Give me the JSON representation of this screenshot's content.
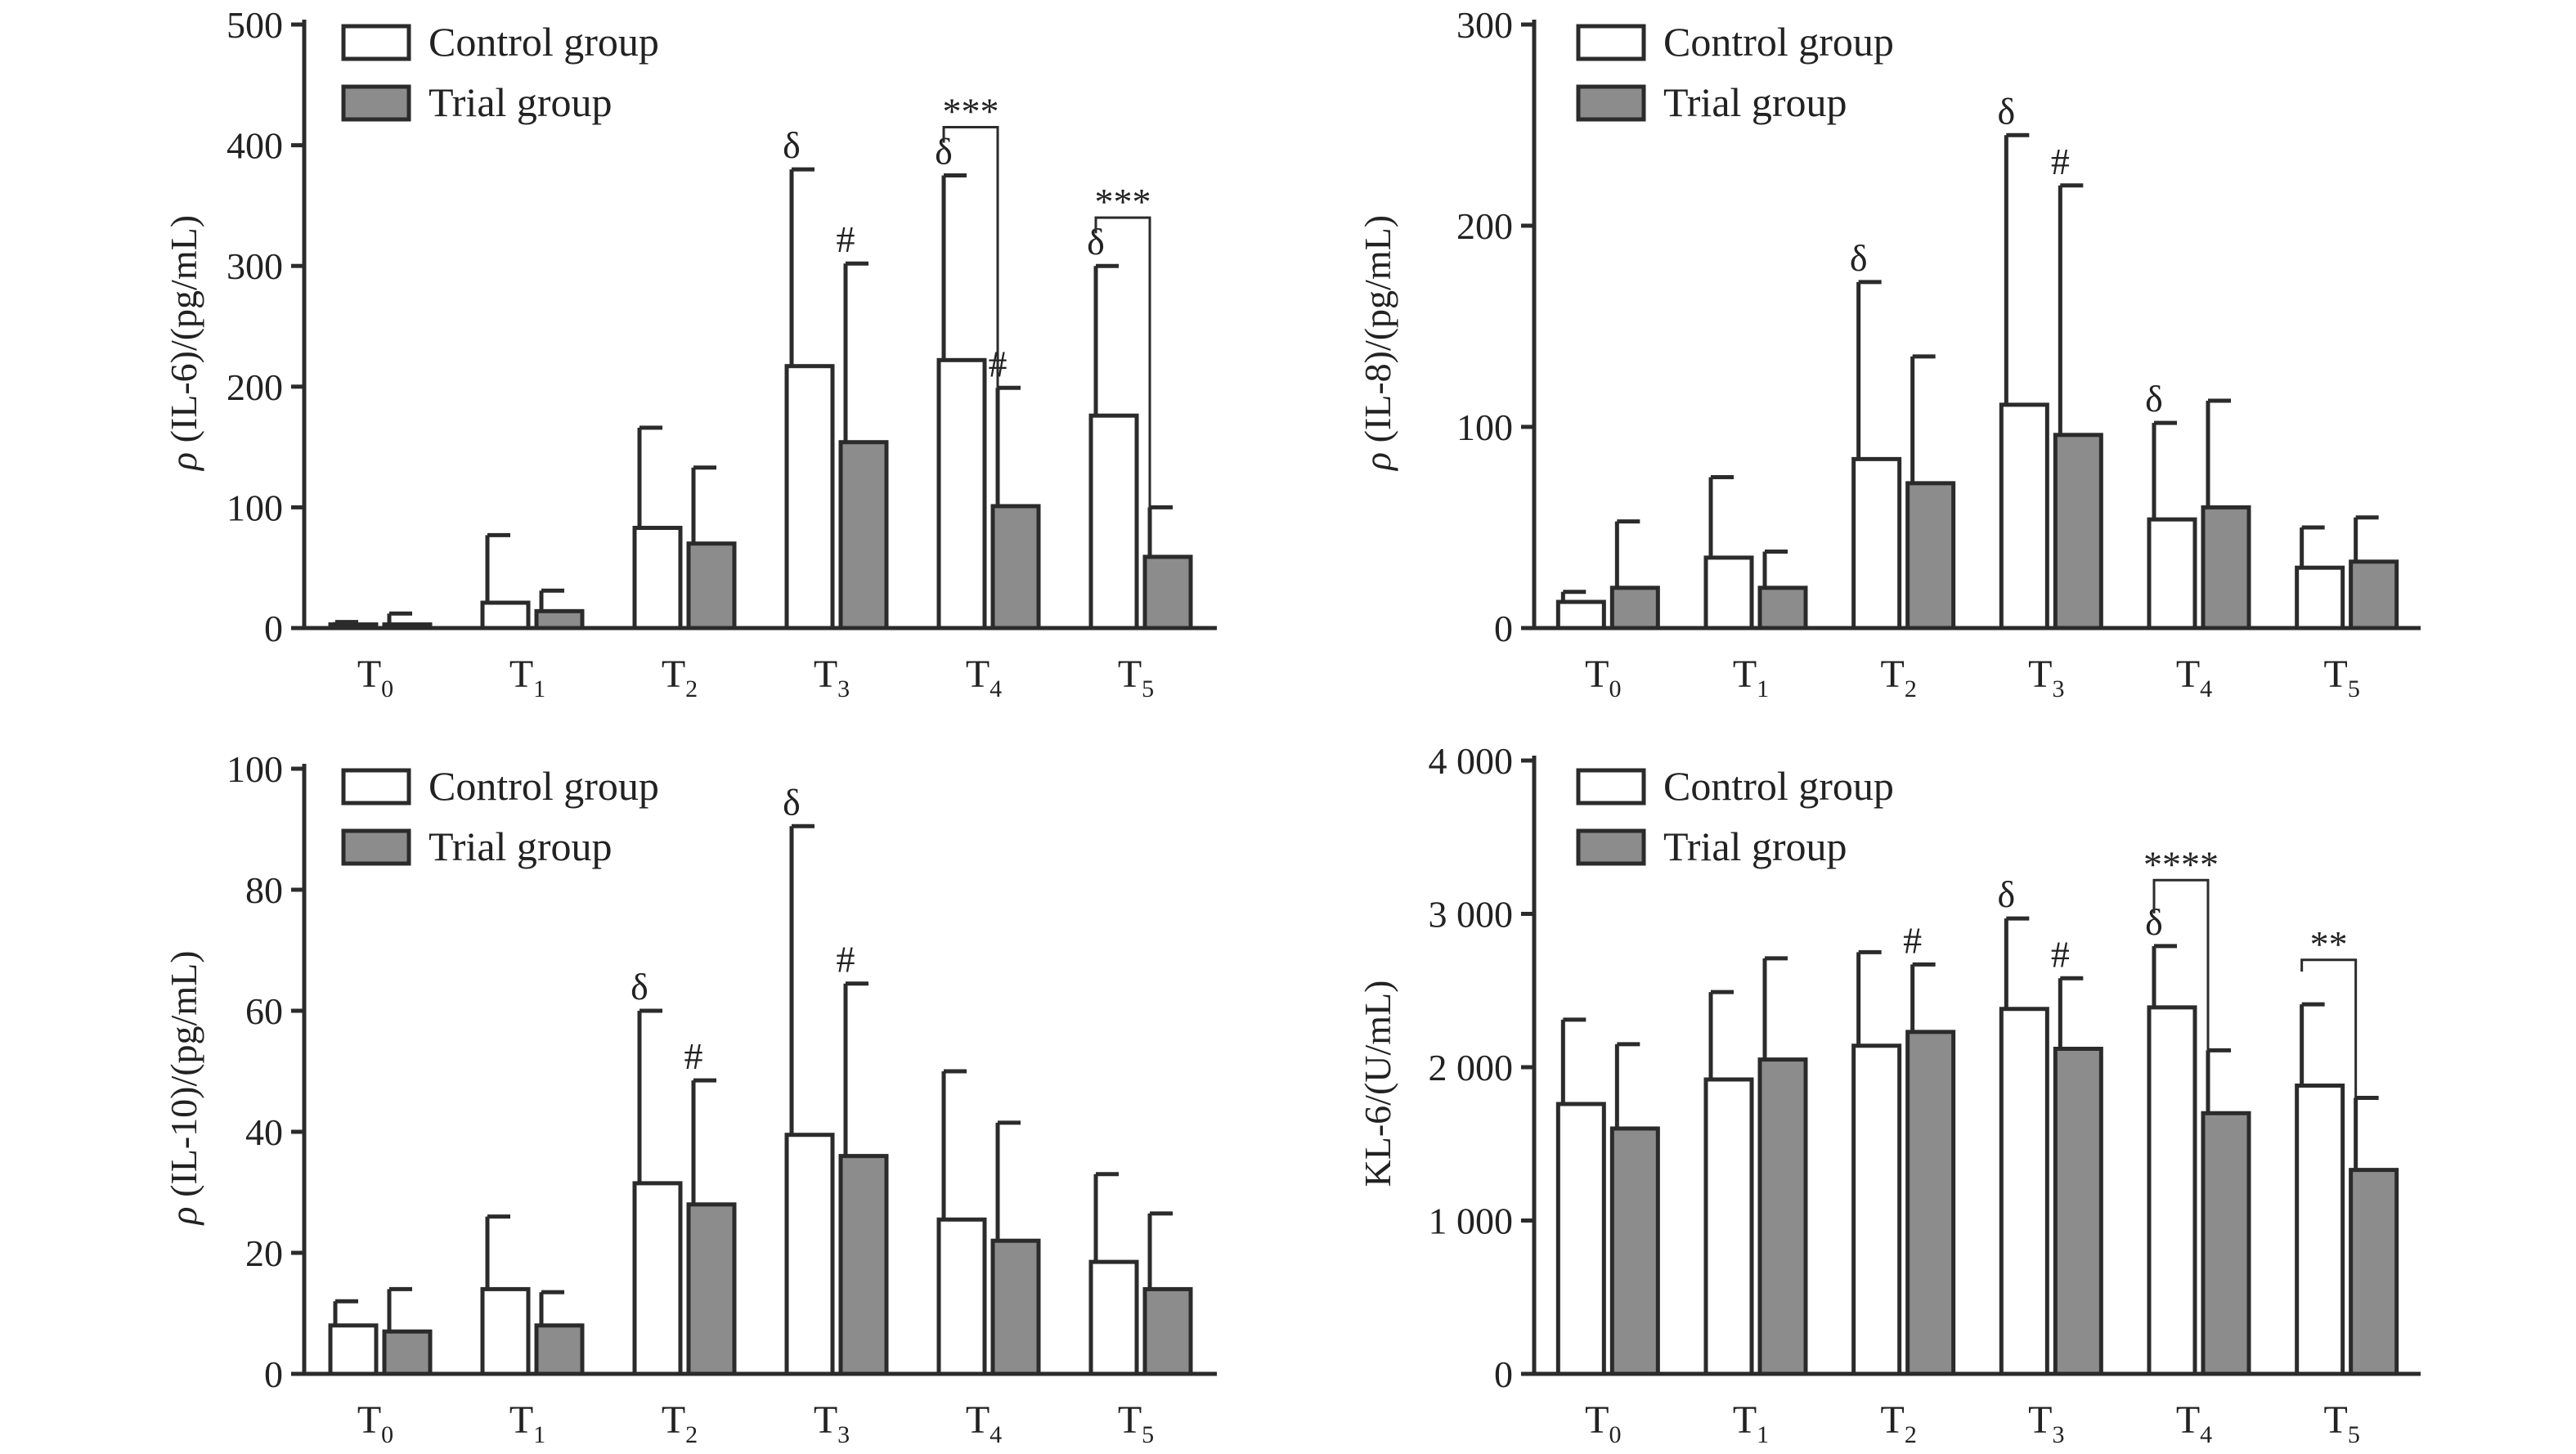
{
  "figure": {
    "legend": {
      "control": "Control group",
      "trial": "Trial group"
    },
    "colors": {
      "control_fill": "#ffffff",
      "trial_fill": "#8c8c8c",
      "stroke": "#2b2b2b"
    }
  },
  "chart_data": [
    {
      "id": "il6",
      "type": "bar",
      "title": "",
      "ylabel_symbol": "ρ",
      "ylabel": " (IL-6)/(pg/mL)",
      "xlabel": "",
      "categories": [
        "T0",
        "T1",
        "T2",
        "T3",
        "T4",
        "T5"
      ],
      "tick_base": "T",
      "tick_subs": [
        "0",
        "1",
        "2",
        "3",
        "4",
        "5"
      ],
      "ylim": [
        0,
        500
      ],
      "yticks": [
        0,
        100,
        200,
        300,
        400,
        500
      ],
      "ytick_labels": [
        "0",
        "100",
        "200",
        "300",
        "400",
        "500"
      ],
      "series": [
        {
          "name": "Control group",
          "values": [
            3,
            21,
            83,
            217,
            222,
            176
          ],
          "errors": [
            2,
            56,
            83,
            163,
            153,
            124
          ]
        },
        {
          "name": "Trial group",
          "values": [
            3,
            14,
            70,
            154,
            101,
            59
          ],
          "errors": [
            9,
            17,
            63,
            148,
            98,
            41
          ]
        }
      ],
      "markers": [
        {
          "category": 3,
          "series": 0,
          "text": "δ"
        },
        {
          "category": 3,
          "series": 1,
          "text": "#"
        },
        {
          "category": 4,
          "series": 0,
          "text": "δ"
        },
        {
          "category": 4,
          "series": 1,
          "text": "#"
        },
        {
          "category": 5,
          "series": 0,
          "text": "δ"
        }
      ],
      "comparisons": [
        {
          "category": 4,
          "text": "***",
          "level": 415
        },
        {
          "category": 5,
          "text": "***",
          "level": 340
        }
      ]
    },
    {
      "id": "il8",
      "type": "bar",
      "title": "",
      "ylabel_symbol": "ρ",
      "ylabel": " (IL-8)/(pg/mL)",
      "xlabel": "",
      "categories": [
        "T0",
        "T1",
        "T2",
        "T3",
        "T4",
        "T5"
      ],
      "tick_base": "T",
      "tick_subs": [
        "0",
        "1",
        "2",
        "3",
        "4",
        "5"
      ],
      "ylim": [
        0,
        300
      ],
      "yticks": [
        0,
        100,
        200,
        300
      ],
      "ytick_labels": [
        "0",
        "100",
        "200",
        "300"
      ],
      "series": [
        {
          "name": "Control group",
          "values": [
            13,
            35,
            84,
            111,
            54,
            30
          ],
          "errors": [
            5,
            40,
            88,
            134,
            48,
            20
          ]
        },
        {
          "name": "Trial group",
          "values": [
            20,
            20,
            72,
            96,
            60,
            33
          ],
          "errors": [
            33,
            18,
            63,
            124,
            53,
            22
          ]
        }
      ],
      "markers": [
        {
          "category": 2,
          "series": 0,
          "text": "δ"
        },
        {
          "category": 3,
          "series": 0,
          "text": "δ"
        },
        {
          "category": 3,
          "series": 1,
          "text": "#"
        },
        {
          "category": 4,
          "series": 0,
          "text": "δ"
        }
      ],
      "comparisons": []
    },
    {
      "id": "il10",
      "type": "bar",
      "title": "",
      "ylabel_symbol": "ρ",
      "ylabel": " (IL-10)/(pg/mL)",
      "xlabel": "",
      "categories": [
        "T0",
        "T1",
        "T2",
        "T3",
        "T4",
        "T5"
      ],
      "tick_base": "T",
      "tick_subs": [
        "0",
        "1",
        "2",
        "3",
        "4",
        "5"
      ],
      "ylim": [
        0,
        100
      ],
      "yticks": [
        0,
        20,
        40,
        60,
        80,
        100
      ],
      "ytick_labels": [
        "0",
        "20",
        "40",
        "60",
        "80",
        "100"
      ],
      "series": [
        {
          "name": "Control group",
          "values": [
            8,
            14,
            31.5,
            39.5,
            25.5,
            18.5
          ],
          "errors": [
            4,
            12,
            28.5,
            51,
            24.5,
            14.5
          ]
        },
        {
          "name": "Trial group",
          "values": [
            7,
            8,
            28,
            36,
            22,
            14
          ],
          "errors": [
            7,
            5.5,
            20.5,
            28.5,
            19.5,
            12.5
          ]
        }
      ],
      "markers": [
        {
          "category": 2,
          "series": 0,
          "text": "δ"
        },
        {
          "category": 2,
          "series": 1,
          "text": "#"
        },
        {
          "category": 3,
          "series": 0,
          "text": "δ"
        },
        {
          "category": 3,
          "series": 1,
          "text": "#"
        }
      ],
      "comparisons": []
    },
    {
      "id": "kl6",
      "type": "bar",
      "title": "",
      "ylabel_symbol": "",
      "ylabel": "KL-6/(U/mL)",
      "xlabel": "",
      "categories": [
        "T0",
        "T1",
        "T2",
        "T3",
        "T4",
        "T5"
      ],
      "tick_base": "T",
      "tick_subs": [
        "0",
        "1",
        "2",
        "3",
        "4",
        "5"
      ],
      "ylim": [
        0,
        4000
      ],
      "yticks": [
        0,
        1000,
        2000,
        3000,
        4000
      ],
      "ytick_labels": [
        "0",
        "1 000",
        "2 000",
        "3 000",
        "4 000"
      ],
      "series": [
        {
          "name": "Control group",
          "values": [
            1760,
            1920,
            2140,
            2380,
            2390,
            1880
          ],
          "errors": [
            550,
            570,
            610,
            590,
            400,
            530
          ]
        },
        {
          "name": "Trial group",
          "values": [
            1600,
            2050,
            2230,
            2120,
            1700,
            1330
          ],
          "errors": [
            550,
            660,
            440,
            460,
            410,
            470
          ]
        }
      ],
      "markers": [
        {
          "category": 2,
          "series": 1,
          "text": "#"
        },
        {
          "category": 3,
          "series": 0,
          "text": "δ"
        },
        {
          "category": 3,
          "series": 1,
          "text": "#"
        },
        {
          "category": 4,
          "series": 0,
          "text": "δ"
        }
      ],
      "comparisons": [
        {
          "category": 4,
          "text": "****",
          "level": 3220
        },
        {
          "category": 5,
          "text": "**",
          "level": 2700
        }
      ]
    }
  ]
}
